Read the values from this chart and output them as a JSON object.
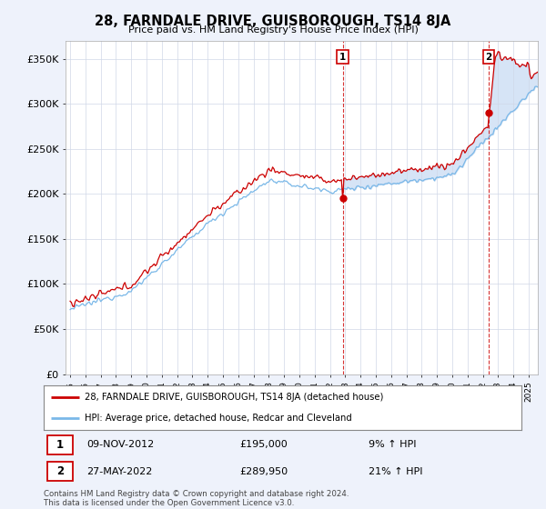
{
  "title": "28, FARNDALE DRIVE, GUISBOROUGH, TS14 8JA",
  "subtitle": "Price paid vs. HM Land Registry's House Price Index (HPI)",
  "background_color": "#eef2fb",
  "plot_bg_color": "#ffffff",
  "hpi_color": "#7ab8e8",
  "price_color": "#cc0000",
  "fill_color": "#cfe0f5",
  "ylabel_ticks": [
    "£0",
    "£50K",
    "£100K",
    "£150K",
    "£200K",
    "£250K",
    "£300K",
    "£350K"
  ],
  "ylabel_values": [
    0,
    50000,
    100000,
    150000,
    200000,
    250000,
    300000,
    350000
  ],
  "ylim": [
    0,
    370000
  ],
  "transaction1_year": 2012.833,
  "transaction1_price": 195000,
  "transaction1_hpi_pct": "9%",
  "transaction1_date": "09-NOV-2012",
  "transaction2_year": 2022.375,
  "transaction2_price": 289950,
  "transaction2_hpi_pct": "21%",
  "transaction2_date": "27-MAY-2022",
  "legend_line1": "28, FARNDALE DRIVE, GUISBOROUGH, TS14 8JA (detached house)",
  "legend_line2": "HPI: Average price, detached house, Redcar and Cleveland",
  "transaction1_hpi": "9% ↑ HPI",
  "transaction2_hpi": "21% ↑ HPI",
  "footnote1": "Contains HM Land Registry data © Crown copyright and database right 2024.",
  "footnote2": "This data is licensed under the Open Government Licence v3.0.",
  "xstart": 1994.7,
  "xend": 2025.6
}
